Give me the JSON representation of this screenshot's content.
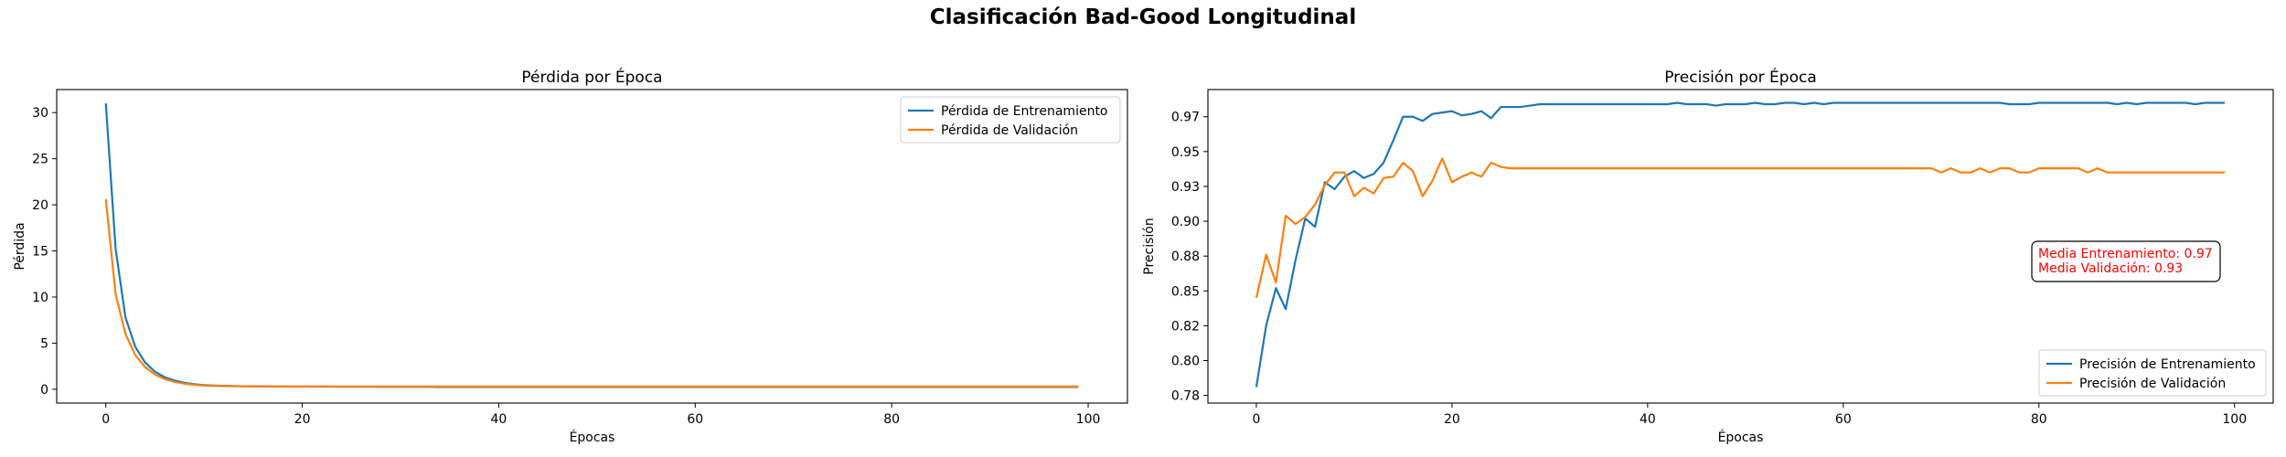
{
  "figure": {
    "suptitle": "Clasificación Bad-Good Longitudinal"
  },
  "chart_data": [
    {
      "type": "line",
      "title": "Pérdida por Época",
      "xlabel": "Épocas",
      "ylabel": "Pérdida",
      "xlim": [
        -5,
        104
      ],
      "ylim": [
        -1.5,
        32.5
      ],
      "xticks": [
        0,
        20,
        40,
        60,
        80,
        100
      ],
      "yticks": [
        0,
        5,
        10,
        15,
        20,
        25,
        30
      ],
      "legend_position": "upper-right",
      "grid": false,
      "series": [
        {
          "name": "Pérdida de Entrenamiento",
          "color": "#1f77b4",
          "y": [
            31.0,
            15.2,
            7.8,
            4.6,
            2.9,
            1.9,
            1.3,
            0.95,
            0.7,
            0.55,
            0.45,
            0.4,
            0.37,
            0.35,
            0.33,
            0.32,
            0.31,
            0.3,
            0.3,
            0.29,
            0.29,
            0.28,
            0.28,
            0.28,
            0.27,
            0.27,
            0.27,
            0.27,
            0.26,
            0.26,
            0.26,
            0.26,
            0.26,
            0.26,
            0.25,
            0.25,
            0.25,
            0.25,
            0.25,
            0.25,
            0.25,
            0.25,
            0.25,
            0.25,
            0.25,
            0.25,
            0.25,
            0.25,
            0.25,
            0.25,
            0.25,
            0.25,
            0.25,
            0.25,
            0.25,
            0.25,
            0.25,
            0.25,
            0.25,
            0.25,
            0.25,
            0.25,
            0.25,
            0.25,
            0.25,
            0.25,
            0.25,
            0.25,
            0.25,
            0.25,
            0.25,
            0.25,
            0.25,
            0.25,
            0.25,
            0.25,
            0.25,
            0.25,
            0.25,
            0.25,
            0.25,
            0.25,
            0.25,
            0.25,
            0.25,
            0.25,
            0.25,
            0.25,
            0.25,
            0.25,
            0.25,
            0.25,
            0.25,
            0.25,
            0.25,
            0.25,
            0.25,
            0.25,
            0.25,
            0.25
          ]
        },
        {
          "name": "Pérdida de Validación",
          "color": "#ff7f0e",
          "y": [
            20.6,
            10.3,
            6.0,
            3.7,
            2.4,
            1.6,
            1.1,
            0.8,
            0.6,
            0.48,
            0.4,
            0.36,
            0.34,
            0.33,
            0.32,
            0.31,
            0.31,
            0.3,
            0.3,
            0.3,
            0.3,
            0.3,
            0.31,
            0.3,
            0.3,
            0.3,
            0.3,
            0.3,
            0.3,
            0.3,
            0.3,
            0.3,
            0.3,
            0.3,
            0.3,
            0.3,
            0.3,
            0.3,
            0.3,
            0.3,
            0.3,
            0.3,
            0.3,
            0.3,
            0.3,
            0.3,
            0.3,
            0.3,
            0.3,
            0.3,
            0.3,
            0.3,
            0.3,
            0.3,
            0.3,
            0.3,
            0.3,
            0.3,
            0.3,
            0.3,
            0.3,
            0.3,
            0.3,
            0.3,
            0.3,
            0.3,
            0.3,
            0.3,
            0.3,
            0.3,
            0.3,
            0.3,
            0.3,
            0.3,
            0.3,
            0.3,
            0.3,
            0.3,
            0.3,
            0.3,
            0.3,
            0.3,
            0.3,
            0.3,
            0.3,
            0.3,
            0.3,
            0.3,
            0.3,
            0.3,
            0.3,
            0.3,
            0.3,
            0.3,
            0.3,
            0.3,
            0.3,
            0.3,
            0.3,
            0.3
          ]
        }
      ]
    },
    {
      "type": "line",
      "title": "Precisión por Época",
      "xlabel": "Épocas",
      "ylabel": "Precisión",
      "xlim": [
        -4.95,
        103.95
      ],
      "ylim": [
        0.7695,
        0.9945
      ],
      "xticks": [
        0,
        20,
        40,
        60,
        80,
        100
      ],
      "yticks": [
        0.775,
        0.8,
        0.825,
        0.85,
        0.875,
        0.9,
        0.925,
        0.95,
        0.975
      ],
      "legend_position": "lower-right",
      "grid": false,
      "annotation": {
        "lines": [
          "Media Entrenamiento: 0.97",
          "Media Validación: 0.93"
        ],
        "color": "#ff0000"
      },
      "series": [
        {
          "name": "Precisión de Entrenamiento",
          "color": "#1f77b4",
          "y": [
            0.781,
            0.825,
            0.852,
            0.837,
            0.872,
            0.902,
            0.896,
            0.928,
            0.923,
            0.932,
            0.936,
            0.931,
            0.934,
            0.942,
            0.958,
            0.975,
            0.975,
            0.972,
            0.977,
            0.978,
            0.979,
            0.976,
            0.977,
            0.979,
            0.974,
            0.982,
            0.982,
            0.982,
            0.983,
            0.984,
            0.984,
            0.984,
            0.984,
            0.984,
            0.984,
            0.984,
            0.984,
            0.984,
            0.984,
            0.984,
            0.984,
            0.984,
            0.984,
            0.985,
            0.984,
            0.984,
            0.984,
            0.983,
            0.984,
            0.984,
            0.984,
            0.985,
            0.984,
            0.984,
            0.985,
            0.985,
            0.984,
            0.985,
            0.984,
            0.985,
            0.985,
            0.985,
            0.985,
            0.985,
            0.985,
            0.985,
            0.985,
            0.985,
            0.985,
            0.985,
            0.985,
            0.985,
            0.985,
            0.985,
            0.985,
            0.985,
            0.985,
            0.984,
            0.984,
            0.984,
            0.985,
            0.985,
            0.985,
            0.985,
            0.985,
            0.985,
            0.985,
            0.985,
            0.984,
            0.985,
            0.984,
            0.985,
            0.985,
            0.985,
            0.985,
            0.985,
            0.984,
            0.985,
            0.985,
            0.985
          ]
        },
        {
          "name": "Precisión de Validación",
          "color": "#ff7f0e",
          "y": [
            0.845,
            0.876,
            0.856,
            0.904,
            0.898,
            0.903,
            0.912,
            0.926,
            0.935,
            0.935,
            0.918,
            0.924,
            0.92,
            0.931,
            0.932,
            0.942,
            0.936,
            0.918,
            0.929,
            0.945,
            0.928,
            0.932,
            0.935,
            0.932,
            0.942,
            0.939,
            0.938,
            0.938,
            0.938,
            0.938,
            0.938,
            0.938,
            0.938,
            0.938,
            0.938,
            0.938,
            0.938,
            0.938,
            0.938,
            0.938,
            0.938,
            0.938,
            0.938,
            0.938,
            0.938,
            0.938,
            0.938,
            0.938,
            0.938,
            0.938,
            0.938,
            0.938,
            0.938,
            0.938,
            0.938,
            0.938,
            0.938,
            0.938,
            0.938,
            0.938,
            0.938,
            0.938,
            0.938,
            0.938,
            0.938,
            0.938,
            0.938,
            0.938,
            0.938,
            0.938,
            0.935,
            0.938,
            0.935,
            0.935,
            0.938,
            0.935,
            0.938,
            0.938,
            0.935,
            0.935,
            0.938,
            0.938,
            0.938,
            0.938,
            0.938,
            0.935,
            0.938,
            0.935,
            0.935,
            0.935,
            0.935,
            0.935,
            0.935,
            0.935,
            0.935,
            0.935,
            0.935,
            0.935,
            0.935,
            0.935
          ]
        }
      ]
    }
  ]
}
